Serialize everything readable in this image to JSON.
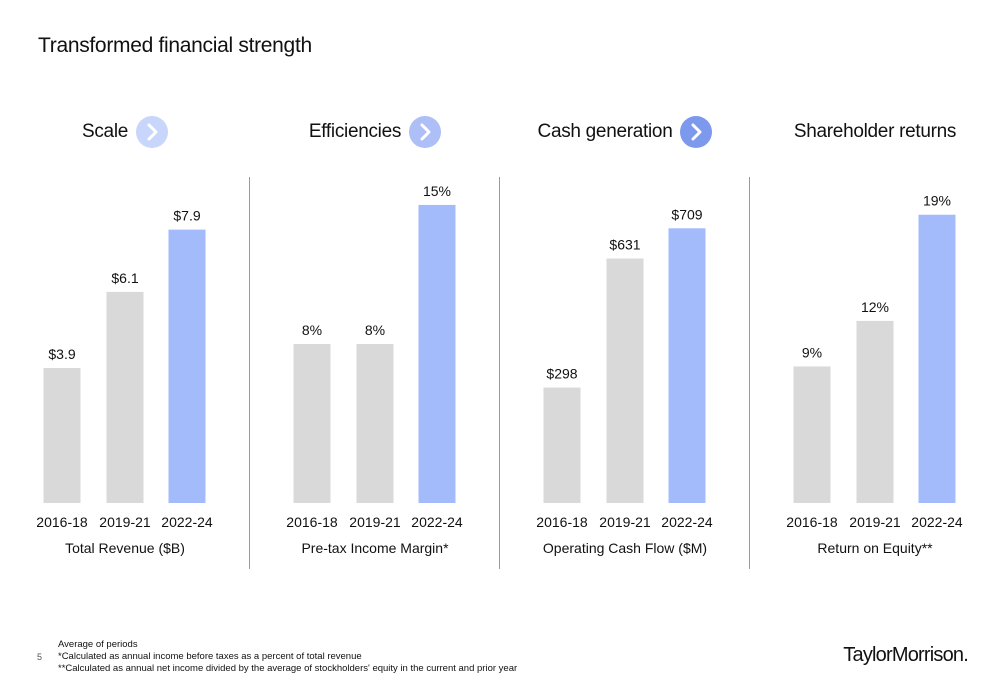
{
  "title": "Transformed financial strength",
  "panels": [
    {
      "heading": "Scale",
      "metric_label": "Total Revenue ($B)"
    },
    {
      "heading": "Efficiencies",
      "metric_label": "Pre-tax Income Margin*"
    },
    {
      "heading": "Cash generation",
      "metric_label": "Operating Cash Flow ($M)"
    },
    {
      "heading": "Shareholder returns",
      "metric_label": "Return on Equity**"
    }
  ],
  "chevron_colors": [
    "#c9d6fb",
    "#aebff7",
    "#7d99ee"
  ],
  "colors": {
    "gray_bar": "#d9d9d9",
    "highlight_bar": "#a3bbfb"
  },
  "chart_data": [
    {
      "type": "bar",
      "title": "",
      "xlabel": "Total Revenue ($B)",
      "ylabel": "",
      "categories": [
        "2016-18",
        "2019-21",
        "2022-24"
      ],
      "values": [
        3.9,
        6.1,
        7.9
      ],
      "labels": [
        "$3.9",
        "$6.1",
        "$7.9"
      ],
      "ylim": [
        0,
        8.9
      ]
    },
    {
      "type": "bar",
      "title": "",
      "xlabel": "Pre-tax Income Margin*",
      "ylabel": "",
      "categories": [
        "2016-18",
        "2019-21",
        "2022-24"
      ],
      "values": [
        8,
        8,
        15
      ],
      "labels": [
        "8%",
        "8%",
        "15%"
      ],
      "ylim": [
        0,
        15.5
      ]
    },
    {
      "type": "bar",
      "title": "",
      "xlabel": "Operating Cash Flow ($M)",
      "ylabel": "",
      "categories": [
        "2016-18",
        "2019-21",
        "2022-24"
      ],
      "values": [
        298,
        631,
        709
      ],
      "labels": [
        "$298",
        "$631",
        "$709"
      ],
      "ylim": [
        0,
        795
      ]
    },
    {
      "type": "bar",
      "title": "",
      "xlabel": "Return on Equity**",
      "ylabel": "",
      "categories": [
        "2016-18",
        "2019-21",
        "2022-24"
      ],
      "values": [
        9,
        12,
        19
      ],
      "labels": [
        "9%",
        "12%",
        "19%"
      ],
      "ylim": [
        0,
        20.3
      ]
    }
  ],
  "footnotes": [
    "Average of periods",
    "*Calculated as annual income before taxes as a percent of total revenue",
    "**Calculated as annual net income divided by the average of stockholders' equity in the current and prior year"
  ],
  "page_number": "5",
  "logo": "TaylorMorrison."
}
